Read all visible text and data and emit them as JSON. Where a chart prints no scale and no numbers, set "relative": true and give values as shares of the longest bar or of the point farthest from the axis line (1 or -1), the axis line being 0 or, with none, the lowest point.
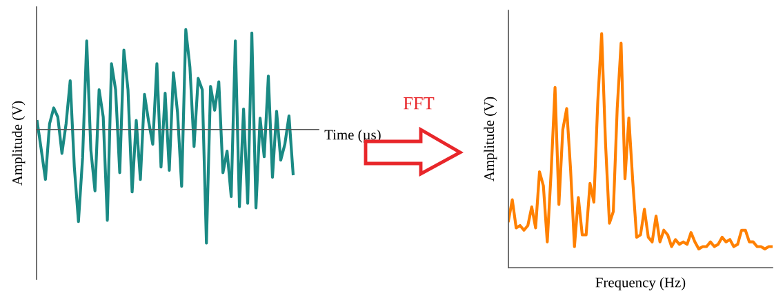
{
  "chart_data": [
    {
      "type": "line",
      "relative": true,
      "xlabel": "Time (µs)",
      "ylabel": "Amplitude (V)",
      "marker": "none",
      "line_style": "solid",
      "annotations": [
        "FFT"
      ],
      "categories": [
        null,
        null,
        null,
        null,
        null,
        null,
        null,
        null,
        null,
        null,
        null,
        null,
        null,
        null,
        null,
        null,
        null,
        null,
        null,
        null,
        null,
        null,
        null,
        null,
        null,
        null,
        null,
        null,
        null,
        null,
        null,
        null,
        null,
        null,
        null,
        null,
        null,
        null,
        null,
        null,
        null,
        null,
        null,
        null,
        null,
        null,
        null,
        null,
        null,
        null,
        null,
        null,
        null,
        null,
        null,
        null,
        null,
        null,
        null,
        null,
        null,
        null,
        null
      ],
      "series": [
        {
          "color": "#1a8a84",
          "values": [
            0.07,
            -0.18,
            -0.44,
            0.05,
            0.19,
            0.11,
            -0.21,
            0.05,
            0.43,
            -0.33,
            -0.81,
            -0.25,
            0.78,
            -0.18,
            -0.54,
            0.35,
            0.11,
            -0.8,
            0.58,
            0.35,
            -0.38,
            0.7,
            0.35,
            -0.55,
            0.08,
            -0.44,
            0.31,
            0.07,
            -0.13,
            0.58,
            -0.33,
            0.32,
            -0.36,
            0.5,
            0.15,
            -0.5,
            0.88,
            0.55,
            -0.15,
            0.45,
            0.35,
            -1.0,
            0.38,
            0.17,
            0.42,
            -0.38,
            -0.19,
            -0.59,
            0.78,
            -0.68,
            0.18,
            -0.65,
            0.85,
            -0.69,
            0.1,
            -0.24,
            0.47,
            -0.42,
            0.16,
            -0.27,
            -0.13,
            0.12,
            -0.39
          ]
        }
      ]
    },
    {
      "type": "line",
      "relative": true,
      "xlabel": "Frequency (Hz)",
      "ylabel": "Amplitude (V)",
      "marker": "none",
      "line_style": "solid",
      "categories": [
        null,
        null,
        null,
        null,
        null,
        null,
        null,
        null,
        null,
        null,
        null,
        null,
        null,
        null,
        null,
        null,
        null,
        null,
        null,
        null,
        null,
        null,
        null,
        null,
        null,
        null,
        null,
        null,
        null,
        null,
        null,
        null,
        null,
        null,
        null,
        null,
        null,
        null,
        null,
        null,
        null,
        null,
        null,
        null,
        null,
        null,
        null,
        null,
        null,
        null,
        null,
        null,
        null,
        null,
        null,
        null,
        null,
        null,
        null,
        null,
        null,
        null,
        null,
        null,
        null,
        null,
        null,
        null,
        null
      ],
      "series": [
        {
          "color": "#ff8000",
          "values": [
            0.2,
            0.29,
            0.17,
            0.18,
            0.16,
            0.18,
            0.26,
            0.17,
            0.41,
            0.35,
            0.11,
            0.41,
            0.77,
            0.27,
            0.59,
            0.68,
            0.42,
            0.09,
            0.3,
            0.14,
            0.14,
            0.36,
            0.28,
            0.71,
            1.0,
            0.53,
            0.19,
            0.24,
            0.68,
            0.96,
            0.38,
            0.64,
            0.37,
            0.13,
            0.14,
            0.25,
            0.13,
            0.11,
            0.22,
            0.11,
            0.16,
            0.14,
            0.09,
            0.12,
            0.1,
            0.11,
            0.1,
            0.15,
            0.11,
            0.08,
            0.09,
            0.09,
            0.11,
            0.09,
            0.1,
            0.13,
            0.11,
            0.12,
            0.09,
            0.1,
            0.16,
            0.16,
            0.11,
            0.11,
            0.09,
            0.09,
            0.08,
            0.09,
            0.09
          ]
        }
      ]
    }
  ]
}
